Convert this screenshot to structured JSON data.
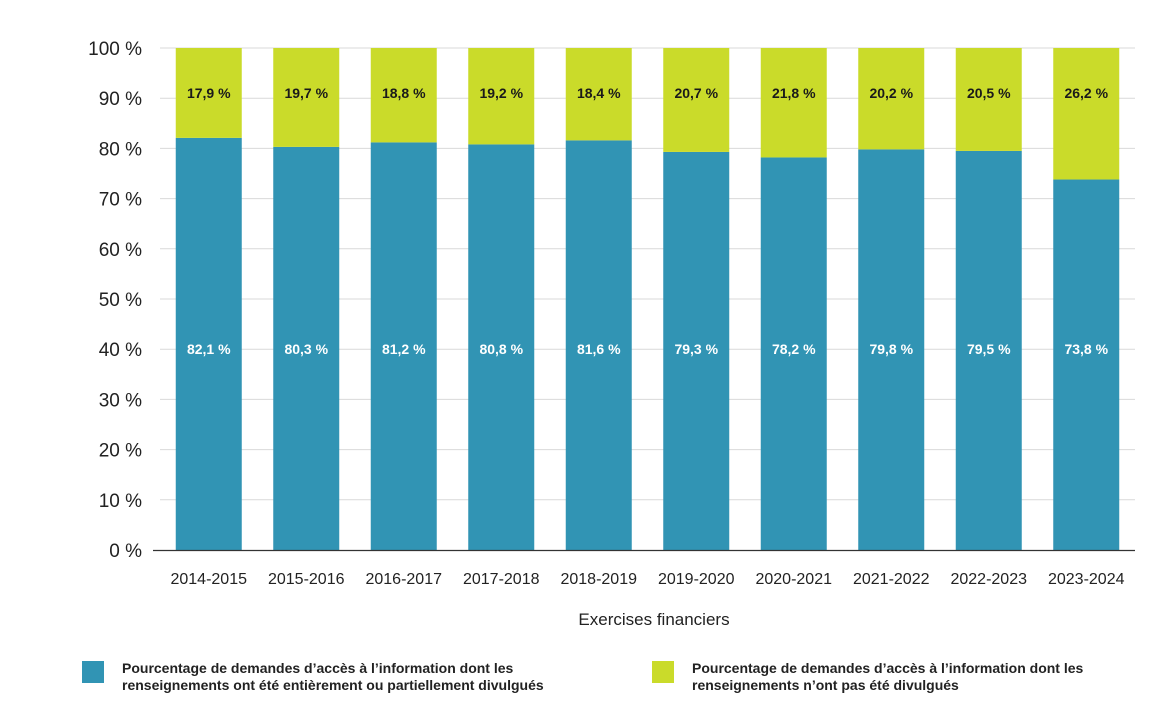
{
  "chart_data": {
    "type": "bar",
    "stacked": true,
    "title": "",
    "xlabel": "Exercises financiers",
    "ylabel": "",
    "ylim": [
      0,
      100
    ],
    "yticks": [
      "0 %",
      "10 %",
      "20 %",
      "30 %",
      "40 %",
      "50 %",
      "60 %",
      "70 %",
      "80 %",
      "90 %",
      "100 %"
    ],
    "categories": [
      "2014-2015",
      "2015-2016",
      "2016-2017",
      "2017-2018",
      "2018-2019",
      "2019-2020",
      "2020-2021",
      "2021-2022",
      "2022-2023",
      "2023-2024"
    ],
    "series": [
      {
        "name": "Pourcentage de demandes d’accès à l’information dont les renseignements ont été entièrement ou partiellement divulgués",
        "values": [
          82.1,
          80.3,
          81.2,
          80.8,
          81.6,
          79.3,
          78.2,
          79.8,
          79.5,
          73.8
        ],
        "labels": [
          "82,1 %",
          "80,3 %",
          "81,2 %",
          "80,8 %",
          "81,6 %",
          "79,3 %",
          "78,2 %",
          "79,8 %",
          "79,5 %",
          "73,8 %"
        ],
        "color": "#3194b4"
      },
      {
        "name": "Pourcentage de demandes d’accès à l’information dont les renseignements n’ont pas été divulgués",
        "values": [
          17.9,
          19.7,
          18.8,
          19.2,
          18.4,
          20.7,
          21.8,
          20.2,
          20.5,
          26.2
        ],
        "labels": [
          "17,9 %",
          "19,7 %",
          "18,8 %",
          "19,2 %",
          "18,4 %",
          "20,7 %",
          "21,8 %",
          "20,2 %",
          "20,5 %",
          "26,2 %"
        ],
        "color": "#cadb2a"
      }
    ],
    "legend": "bottom",
    "grid": true
  }
}
